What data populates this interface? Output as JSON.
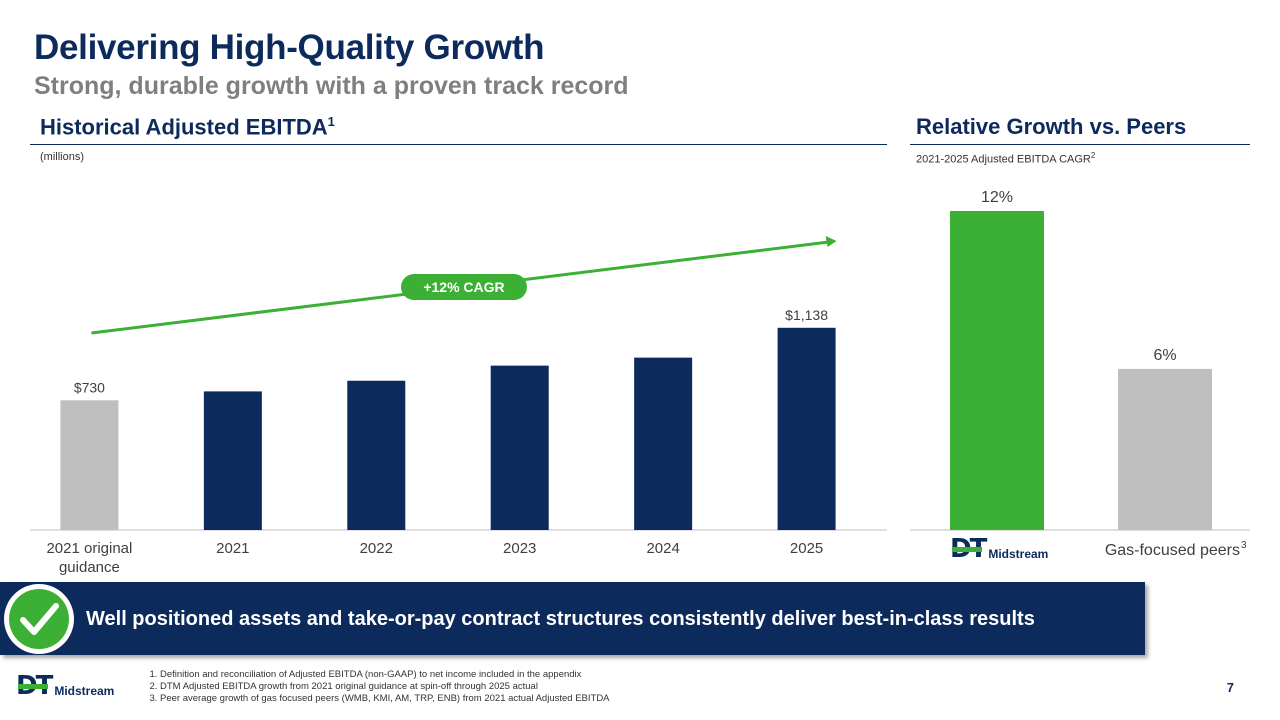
{
  "title": "Delivering High-Quality Growth",
  "subtitle": "Strong, durable growth with a proven track record",
  "left_section": {
    "title": "Historical Adjusted EBITDA",
    "title_sup": "1",
    "unit_note": "(millions)"
  },
  "right_section": {
    "title": "Relative Growth vs. Peers",
    "note": "2021-2025 Adjusted EBITDA CAGR",
    "note_sup": "2"
  },
  "cagr_badge": "+12% CAGR",
  "banner_text": "Well positioned assets and take-or-pay contract structures consistently deliver best-in-class results",
  "logo": {
    "mark": "DT",
    "name": "Midstream"
  },
  "footnotes": [
    "Definition and reconciliation of Adjusted EBITDA (non-GAAP) to net income included in the appendix",
    "DTM Adjusted EBITDA growth from 2021 original guidance at spin-off through 2025 actual",
    "Peer average growth of gas focused peers (WMB, KMI, AM, TRP, ENB) from 2021 actual Adjusted EBITDA"
  ],
  "page_number": "7",
  "colors": {
    "navy": "#0c2a5b",
    "green": "#3cb034",
    "gray": "#bfbfbf",
    "subtitle_gray": "#7f7f7f"
  },
  "chart_data": [
    {
      "type": "bar",
      "title": "Historical Adjusted EBITDA",
      "ylabel": "(millions)",
      "categories": [
        "2021 original guidance",
        "2021",
        "2022",
        "2023",
        "2024",
        "2025"
      ],
      "values": [
        730,
        780,
        840,
        925,
        970,
        1138
      ],
      "data_labels": [
        "$730",
        "",
        "",
        "",
        "",
        "$1,138"
      ],
      "bar_colors": [
        "#bfbfbf",
        "#0c2a5b",
        "#0c2a5b",
        "#0c2a5b",
        "#0c2a5b",
        "#0c2a5b"
      ],
      "ylim": [
        0,
        1300
      ],
      "annotation": "+12% CAGR"
    },
    {
      "type": "bar",
      "title": "Relative Growth vs. Peers",
      "ylabel": "2021-2025 Adjusted EBITDA CAGR",
      "categories": [
        "DT Midstream",
        "Gas-focused peers"
      ],
      "category_sup": [
        "",
        "3"
      ],
      "values": [
        12,
        6
      ],
      "data_labels": [
        "12%",
        "6%"
      ],
      "bar_colors": [
        "#3cb034",
        "#bfbfbf"
      ],
      "ylim": [
        0,
        12
      ]
    }
  ]
}
